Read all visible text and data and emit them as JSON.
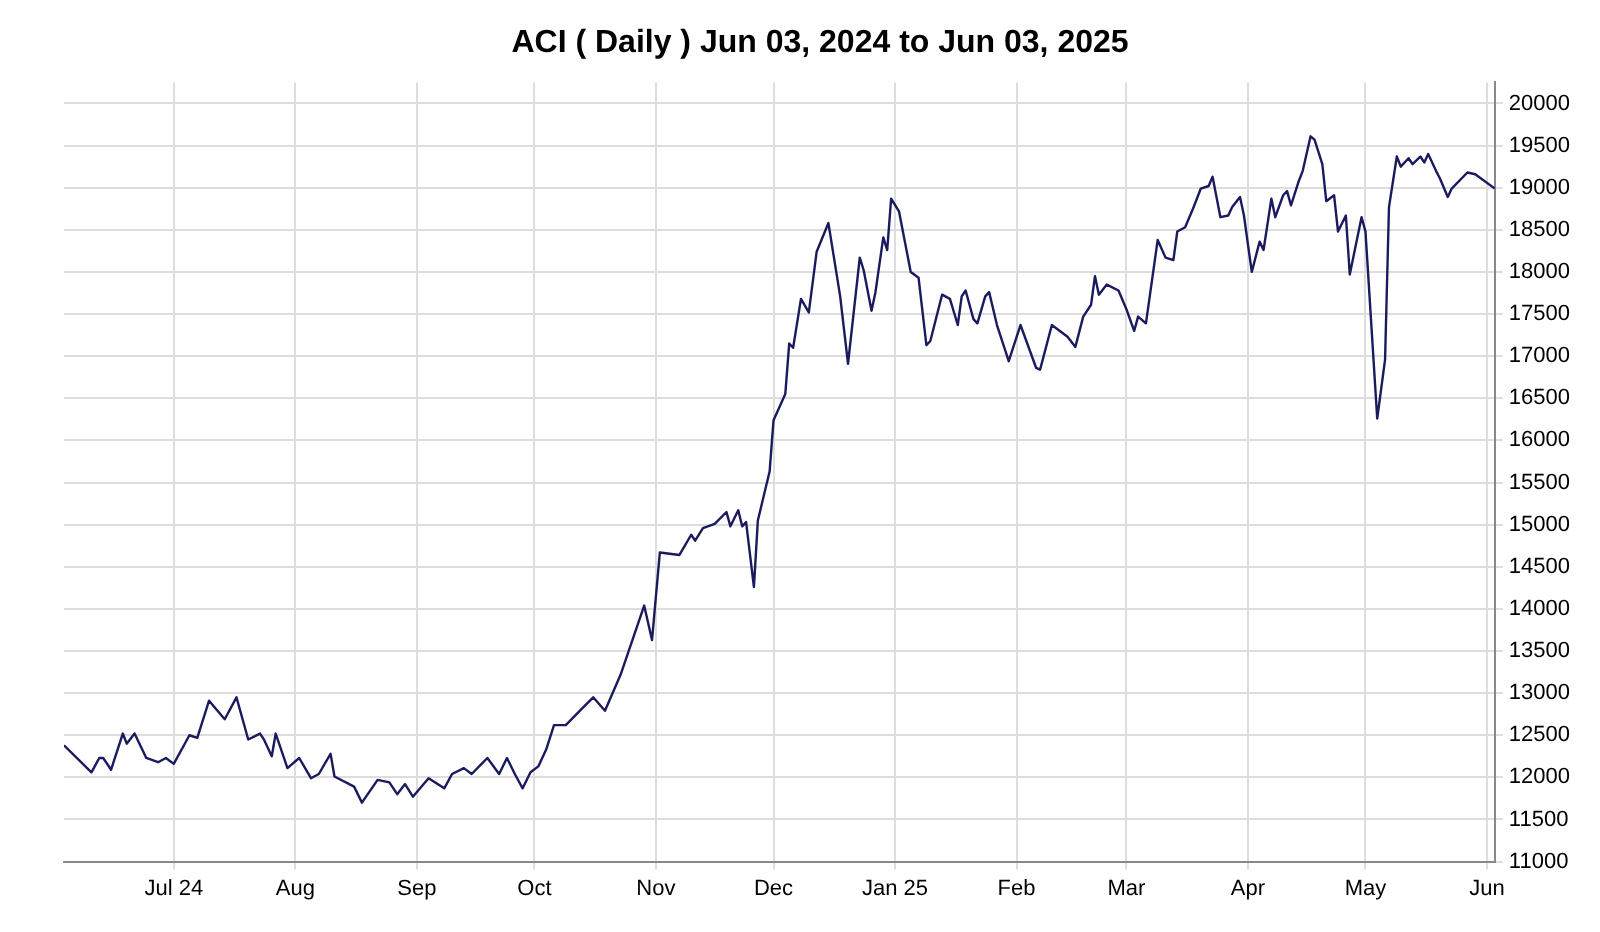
{
  "chart_data": {
    "type": "line",
    "title": "ACI ( Daily ) Jun 03, 2024 to Jun 03, 2025",
    "x": [
      "2024-06-03",
      "2024-06-10",
      "2024-06-12",
      "2024-06-13",
      "2024-06-15",
      "2024-06-18",
      "2024-06-19",
      "2024-06-21",
      "2024-06-24",
      "2024-06-27",
      "2024-06-29",
      "2024-07-01",
      "2024-07-05",
      "2024-07-07",
      "2024-07-10",
      "2024-07-14",
      "2024-07-17",
      "2024-07-20",
      "2024-07-23",
      "2024-07-24",
      "2024-07-26",
      "2024-07-27",
      "2024-07-30",
      "2024-08-02",
      "2024-08-05",
      "2024-08-07",
      "2024-08-10",
      "2024-08-11",
      "2024-08-16",
      "2024-08-18",
      "2024-08-22",
      "2024-08-25",
      "2024-08-27",
      "2024-08-29",
      "2024-08-31",
      "2024-09-04",
      "2024-09-08",
      "2024-09-10",
      "2024-09-13",
      "2024-09-15",
      "2024-09-19",
      "2024-09-22",
      "2024-09-24",
      "2024-09-26",
      "2024-09-28",
      "2024-09-30",
      "2024-10-02",
      "2024-10-04",
      "2024-10-06",
      "2024-10-09",
      "2024-10-13",
      "2024-10-16",
      "2024-10-19",
      "2024-10-23",
      "2024-10-29",
      "2024-10-31",
      "2024-11-02",
      "2024-11-07",
      "2024-11-10",
      "2024-11-11",
      "2024-11-13",
      "2024-11-16",
      "2024-11-19",
      "2024-11-20",
      "2024-11-22",
      "2024-11-23",
      "2024-11-24",
      "2024-11-26",
      "2024-11-27",
      "2024-11-30",
      "2024-12-01",
      "2024-12-04",
      "2024-12-05",
      "2024-12-06",
      "2024-12-08",
      "2024-12-10",
      "2024-12-12",
      "2024-12-15",
      "2024-12-18",
      "2024-12-20",
      "2024-12-23",
      "2024-12-24",
      "2024-12-26",
      "2024-12-27",
      "2024-12-29",
      "2024-12-30",
      "2024-12-31",
      "2025-01-02",
      "2025-01-05",
      "2025-01-07",
      "2025-01-09",
      "2025-01-10",
      "2025-01-13",
      "2025-01-15",
      "2025-01-17",
      "2025-01-18",
      "2025-01-19",
      "2025-01-21",
      "2025-01-22",
      "2025-01-24",
      "2025-01-25",
      "2025-01-27",
      "2025-01-30",
      "2025-02-02",
      "2025-02-06",
      "2025-02-07",
      "2025-02-10",
      "2025-02-14",
      "2025-02-16",
      "2025-02-18",
      "2025-02-20",
      "2025-02-21",
      "2025-02-22",
      "2025-02-24",
      "2025-02-27",
      "2025-03-01",
      "2025-03-03",
      "2025-03-04",
      "2025-03-06",
      "2025-03-09",
      "2025-03-11",
      "2025-03-13",
      "2025-03-14",
      "2025-03-16",
      "2025-03-18",
      "2025-03-20",
      "2025-03-22",
      "2025-03-23",
      "2025-03-25",
      "2025-03-27",
      "2025-03-28",
      "2025-03-30",
      "2025-03-31",
      "2025-04-02",
      "2025-04-04",
      "2025-04-05",
      "2025-04-07",
      "2025-04-08",
      "2025-04-10",
      "2025-04-11",
      "2025-04-12",
      "2025-04-14",
      "2025-04-15",
      "2025-04-17",
      "2025-04-18",
      "2025-04-20",
      "2025-04-21",
      "2025-04-23",
      "2025-04-24",
      "2025-04-26",
      "2025-04-27",
      "2025-04-30",
      "2025-05-01",
      "2025-05-04",
      "2025-05-06",
      "2025-05-07",
      "2025-05-09",
      "2025-05-10",
      "2025-05-12",
      "2025-05-13",
      "2025-05-15",
      "2025-05-16",
      "2025-05-17",
      "2025-05-19",
      "2025-05-20",
      "2025-05-22",
      "2025-05-23",
      "2025-05-27",
      "2025-05-29",
      "2025-06-03"
    ],
    "series": [
      {
        "color": "#1a1a5e",
        "values": [
          12380,
          12060,
          12230,
          12230,
          12090,
          12520,
          12400,
          12520,
          12230,
          12180,
          12230,
          12160,
          12500,
          12470,
          12910,
          12690,
          12950,
          12450,
          12520,
          12450,
          12250,
          12520,
          12110,
          12230,
          11990,
          12040,
          12280,
          12010,
          11890,
          11700,
          11970,
          11940,
          11800,
          11920,
          11770,
          11990,
          11870,
          12040,
          12110,
          12040,
          12230,
          12040,
          12230,
          12040,
          11870,
          12060,
          12130,
          12330,
          12620,
          12620,
          12810,
          12950,
          12790,
          13220,
          14040,
          13630,
          14670,
          14640,
          14880,
          14810,
          14960,
          15010,
          15150,
          14980,
          15170,
          14980,
          15030,
          14260,
          15050,
          15630,
          16240,
          16550,
          17150,
          17100,
          17680,
          17520,
          18240,
          18580,
          17710,
          16910,
          18170,
          18020,
          17540,
          17760,
          18410,
          18260,
          18870,
          18720,
          18000,
          17930,
          17130,
          17180,
          17730,
          17680,
          17370,
          17710,
          17780,
          17440,
          17390,
          17710,
          17760,
          17370,
          16940,
          17370,
          16860,
          16840,
          17370,
          17230,
          17110,
          17470,
          17610,
          17950,
          17730,
          17850,
          17780,
          17560,
          17300,
          17470,
          17390,
          18380,
          18170,
          18140,
          18480,
          18530,
          18750,
          18990,
          19020,
          19130,
          18650,
          18670,
          18770,
          18890,
          18670,
          18000,
          18360,
          18260,
          18870,
          18650,
          18910,
          18960,
          18790,
          19080,
          19200,
          19610,
          19570,
          19280,
          18840,
          18910,
          18480,
          18670,
          17970,
          18650,
          18480,
          16260,
          16960,
          18770,
          19370,
          19250,
          19350,
          19280,
          19370,
          19300,
          19400,
          19200,
          19110,
          18890,
          18990,
          19180,
          19160,
          18990
        ]
      }
    ],
    "xlim": [
      "2024-06-03",
      "2025-06-03"
    ],
    "xticks": [
      {
        "value": "2024-07-01",
        "label": "Jul 24"
      },
      {
        "value": "2024-08-01",
        "label": "Aug"
      },
      {
        "value": "2024-09-01",
        "label": "Sep"
      },
      {
        "value": "2024-10-01",
        "label": "Oct"
      },
      {
        "value": "2024-11-01",
        "label": "Nov"
      },
      {
        "value": "2024-12-01",
        "label": "Dec"
      },
      {
        "value": "2025-01-01",
        "label": "Jan 25"
      },
      {
        "value": "2025-02-01",
        "label": "Feb"
      },
      {
        "value": "2025-03-01",
        "label": "Mar"
      },
      {
        "value": "2025-04-01",
        "label": "Apr"
      },
      {
        "value": "2025-05-01",
        "label": "May"
      },
      {
        "value": "2025-06-01",
        "label": "Jun"
      }
    ],
    "ylim": [
      11000,
      20250
    ],
    "yticks": [
      11000,
      11500,
      12000,
      12500,
      13000,
      13500,
      14000,
      14500,
      15000,
      15500,
      16000,
      16500,
      17000,
      17500,
      18000,
      18500,
      19000,
      19500,
      20000
    ],
    "grid": true,
    "legend": false,
    "marker": "none",
    "line_style": "solid"
  }
}
